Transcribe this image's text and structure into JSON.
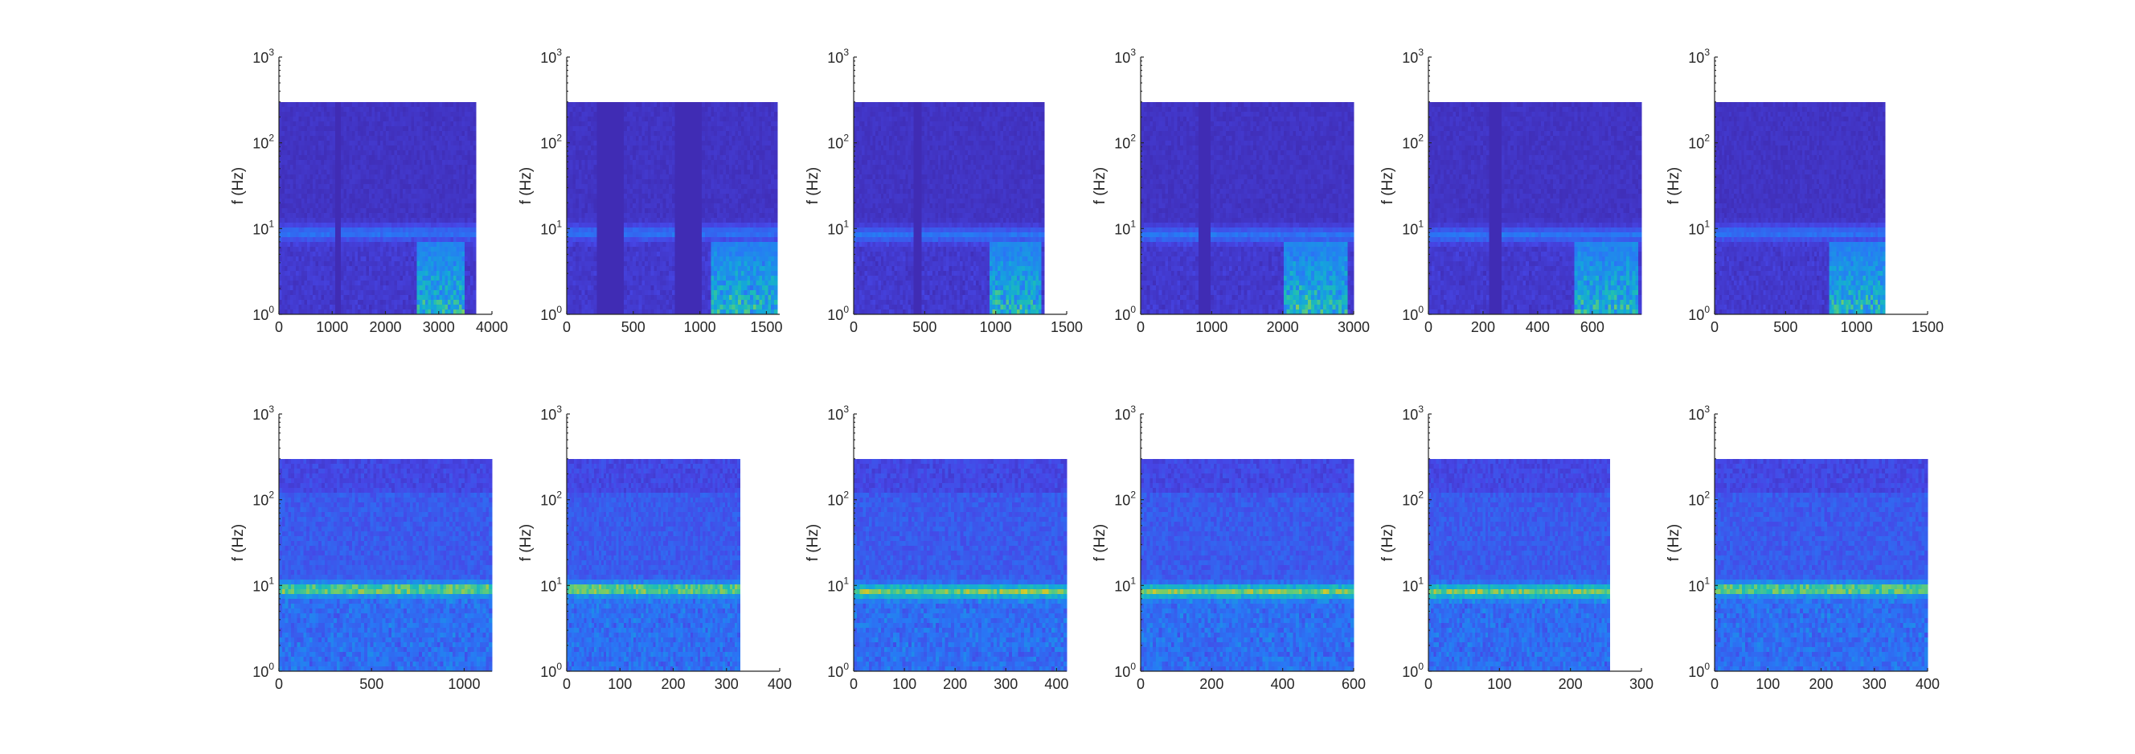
{
  "chart_data": [
    {
      "type": "heatmap",
      "ylabel": "f (Hz)",
      "yscale": "log",
      "ylim": [
        1,
        1000
      ],
      "ytick_bases": [
        "10",
        "10",
        "10",
        "10"
      ],
      "ytick_exponents": [
        "0",
        "1",
        "2",
        "3"
      ],
      "yfill_max": 300,
      "xlim": [
        0,
        4000
      ],
      "xticks": [
        0,
        1000,
        2000,
        3000,
        4000
      ],
      "xticklabels": [
        "0",
        "1000",
        "2000",
        "3000",
        "4000"
      ],
      "data_xmax": 3700,
      "band_hz": 9,
      "gaps": [
        [
          1050,
          1150
        ]
      ],
      "bursts": [
        [
          2600,
          3500
        ]
      ]
    },
    {
      "type": "heatmap",
      "ylabel": "f (Hz)",
      "yscale": "log",
      "ylim": [
        1,
        1000
      ],
      "ytick_bases": [
        "10",
        "10",
        "10",
        "10"
      ],
      "ytick_exponents": [
        "0",
        "1",
        "2",
        "3"
      ],
      "yfill_max": 300,
      "xlim": [
        0,
        1600
      ],
      "xticks": [
        0,
        500,
        1000,
        1500
      ],
      "xticklabels": [
        "0",
        "500",
        "1000",
        "1500"
      ],
      "data_xmax": 1580,
      "band_hz": 9,
      "gaps": [
        [
          230,
          420
        ],
        [
          820,
          1020
        ]
      ],
      "bursts": [
        [
          1080,
          1580
        ]
      ]
    },
    {
      "type": "heatmap",
      "ylabel": "f (Hz)",
      "yscale": "log",
      "ylim": [
        1,
        1000
      ],
      "ytick_bases": [
        "10",
        "10",
        "10",
        "10"
      ],
      "ytick_exponents": [
        "0",
        "1",
        "2",
        "3"
      ],
      "yfill_max": 300,
      "xlim": [
        0,
        1500
      ],
      "xticks": [
        0,
        500,
        1000,
        1500
      ],
      "xticklabels": [
        "0",
        "500",
        "1000",
        "1500"
      ],
      "data_xmax": 1340,
      "band_hz": 8.5,
      "gaps": [
        [
          430,
          480
        ]
      ],
      "bursts": [
        [
          950,
          1320
        ]
      ]
    },
    {
      "type": "heatmap",
      "ylabel": "f (Hz)",
      "yscale": "log",
      "ylim": [
        1,
        1000
      ],
      "ytick_bases": [
        "10",
        "10",
        "10",
        "10"
      ],
      "ytick_exponents": [
        "0",
        "1",
        "2",
        "3"
      ],
      "yfill_max": 300,
      "xlim": [
        0,
        3000
      ],
      "xticks": [
        0,
        1000,
        2000,
        3000
      ],
      "xticklabels": [
        "0",
        "1000",
        "2000",
        "3000"
      ],
      "data_xmax": 3000,
      "band_hz": 8.5,
      "gaps": [
        [
          800,
          1000
        ]
      ],
      "bursts": [
        [
          2000,
          2900
        ]
      ]
    },
    {
      "type": "heatmap",
      "ylabel": "f (Hz)",
      "yscale": "log",
      "ylim": [
        1,
        1000
      ],
      "ytick_bases": [
        "10",
        "10",
        "10",
        "10"
      ],
      "ytick_exponents": [
        "0",
        "1",
        "2",
        "3"
      ],
      "yfill_max": 300,
      "xlim": [
        0,
        780
      ],
      "xticks": [
        0,
        200,
        400,
        600
      ],
      "xticklabels": [
        "0",
        "200",
        "400",
        "600"
      ],
      "data_xmax": 780,
      "band_hz": 8.5,
      "gaps": [
        [
          225,
          270
        ]
      ],
      "bursts": [
        [
          540,
          770
        ]
      ]
    },
    {
      "type": "heatmap",
      "ylabel": "f (Hz)",
      "yscale": "log",
      "ylim": [
        1,
        1000
      ],
      "ytick_bases": [
        "10",
        "10",
        "10",
        "10"
      ],
      "ytick_exponents": [
        "0",
        "1",
        "2",
        "3"
      ],
      "yfill_max": 300,
      "xlim": [
        0,
        1500
      ],
      "xticks": [
        0,
        500,
        1000,
        1500
      ],
      "xticklabels": [
        "0",
        "500",
        "1000",
        "1500"
      ],
      "data_xmax": 1200,
      "band_hz": 9,
      "gaps": [],
      "bursts": [
        [
          800,
          1200
        ]
      ]
    },
    {
      "type": "heatmap",
      "ylabel": "f (Hz)",
      "yscale": "log",
      "ylim": [
        1,
        1000
      ],
      "ytick_bases": [
        "10",
        "10",
        "10",
        "10"
      ],
      "ytick_exponents": [
        "0",
        "1",
        "2",
        "3"
      ],
      "yfill_max": 300,
      "xlim": [
        0,
        1150
      ],
      "xticks": [
        0,
        500,
        1000
      ],
      "xticklabels": [
        "0",
        "500",
        "1000"
      ],
      "data_xmax": 1150,
      "band_hz": 9,
      "gaps": [],
      "bursts": []
    },
    {
      "type": "heatmap",
      "ylabel": "f (Hz)",
      "yscale": "log",
      "ylim": [
        1,
        1000
      ],
      "ytick_bases": [
        "10",
        "10",
        "10",
        "10"
      ],
      "ytick_exponents": [
        "0",
        "1",
        "2",
        "3"
      ],
      "yfill_max": 300,
      "xlim": [
        0,
        400
      ],
      "xticks": [
        0,
        100,
        200,
        300,
        400
      ],
      "xticklabels": [
        "0",
        "100",
        "200",
        "300",
        "400"
      ],
      "data_xmax": 325,
      "band_hz": 9,
      "gaps": [],
      "bursts": []
    },
    {
      "type": "heatmap",
      "ylabel": "f (Hz)",
      "yscale": "log",
      "ylim": [
        1,
        1000
      ],
      "ytick_bases": [
        "10",
        "10",
        "10",
        "10"
      ],
      "ytick_exponents": [
        "0",
        "1",
        "2",
        "3"
      ],
      "yfill_max": 300,
      "xlim": [
        0,
        420
      ],
      "xticks": [
        0,
        100,
        200,
        300,
        400
      ],
      "xticklabels": [
        "0",
        "100",
        "200",
        "300",
        "400"
      ],
      "data_xmax": 420,
      "band_hz": 8.5,
      "gaps": [],
      "bursts": []
    },
    {
      "type": "heatmap",
      "ylabel": "f (Hz)",
      "yscale": "log",
      "ylim": [
        1,
        1000
      ],
      "ytick_bases": [
        "10",
        "10",
        "10",
        "10"
      ],
      "ytick_exponents": [
        "0",
        "1",
        "2",
        "3"
      ],
      "yfill_max": 300,
      "xlim": [
        0,
        600
      ],
      "xticks": [
        0,
        200,
        400,
        600
      ],
      "xticklabels": [
        "0",
        "200",
        "400",
        "600"
      ],
      "data_xmax": 600,
      "band_hz": 8.5,
      "gaps": [],
      "bursts": []
    },
    {
      "type": "heatmap",
      "ylabel": "f (Hz)",
      "yscale": "log",
      "ylim": [
        1,
        1000
      ],
      "ytick_bases": [
        "10",
        "10",
        "10",
        "10"
      ],
      "ytick_exponents": [
        "0",
        "1",
        "2",
        "3"
      ],
      "yfill_max": 300,
      "xlim": [
        0,
        300
      ],
      "xticks": [
        0,
        100,
        200,
        300
      ],
      "xticklabels": [
        "0",
        "100",
        "200",
        "300"
      ],
      "data_xmax": 255,
      "band_hz": 8.5,
      "gaps": [],
      "bursts": []
    },
    {
      "type": "heatmap",
      "ylabel": "f (Hz)",
      "yscale": "log",
      "ylim": [
        1,
        1000
      ],
      "ytick_bases": [
        "10",
        "10",
        "10",
        "10"
      ],
      "ytick_exponents": [
        "0",
        "1",
        "2",
        "3"
      ],
      "yfill_max": 300,
      "xlim": [
        0,
        400
      ],
      "xticks": [
        0,
        100,
        200,
        300,
        400
      ],
      "xticklabels": [
        "0",
        "100",
        "200",
        "300",
        "400"
      ],
      "data_xmax": 400,
      "band_hz": 9,
      "gaps": [],
      "bursts": []
    }
  ]
}
